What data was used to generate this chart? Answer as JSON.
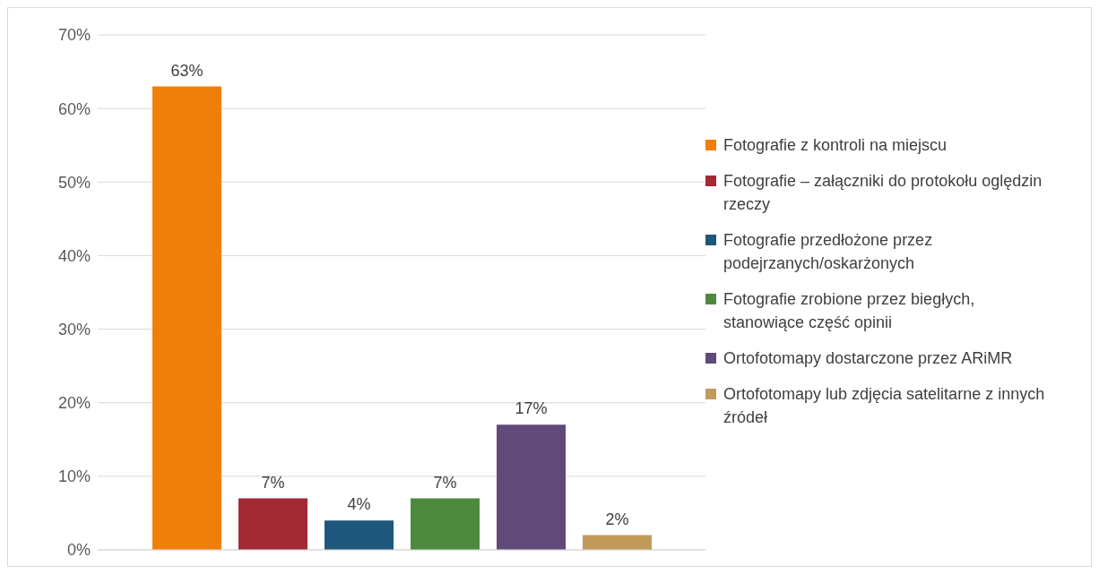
{
  "chart_data": {
    "type": "bar",
    "categories": [
      null
    ],
    "series": [
      {
        "name": "Fotografie z kontroli na miejscu",
        "color": "#f07f09",
        "values": [
          63
        ],
        "value_labels": [
          "63%"
        ]
      },
      {
        "name": "Fotografie – załączniki do protokołu oględzin rzeczy",
        "color": "#a32a35",
        "values": [
          7
        ],
        "value_labels": [
          "7%"
        ]
      },
      {
        "name": "Fotografie przedłożone przez podejrzanych/oskarżonych",
        "color": "#1f567c",
        "values": [
          4
        ],
        "value_labels": [
          "4%"
        ]
      },
      {
        "name": "Fotografie zrobione przez biegłych, stanowiące część opinii",
        "color": "#4e8940",
        "values": [
          7
        ],
        "value_labels": [
          "7%"
        ]
      },
      {
        "name": "Ortofotomapy dostarczone przez ARiMR",
        "color": "#614a7a",
        "values": [
          17
        ],
        "value_labels": [
          "17%"
        ]
      },
      {
        "name": "Ortofotomapy lub zdjęcia satelitarne z innych źródeł",
        "color": "#c29a5a",
        "values": [
          2
        ],
        "value_labels": [
          "2%"
        ]
      }
    ],
    "ylim": [
      0,
      70
    ],
    "yticks": [
      {
        "value": 0,
        "label": "0%"
      },
      {
        "value": 10,
        "label": "10%"
      },
      {
        "value": 20,
        "label": "20%"
      },
      {
        "value": 30,
        "label": "30%"
      },
      {
        "value": 40,
        "label": "40%"
      },
      {
        "value": 50,
        "label": "50%"
      },
      {
        "value": 60,
        "label": "60%"
      },
      {
        "value": 70,
        "label": "70%"
      }
    ],
    "grid": "y",
    "legend": "right",
    "tick_labels": "y"
  }
}
